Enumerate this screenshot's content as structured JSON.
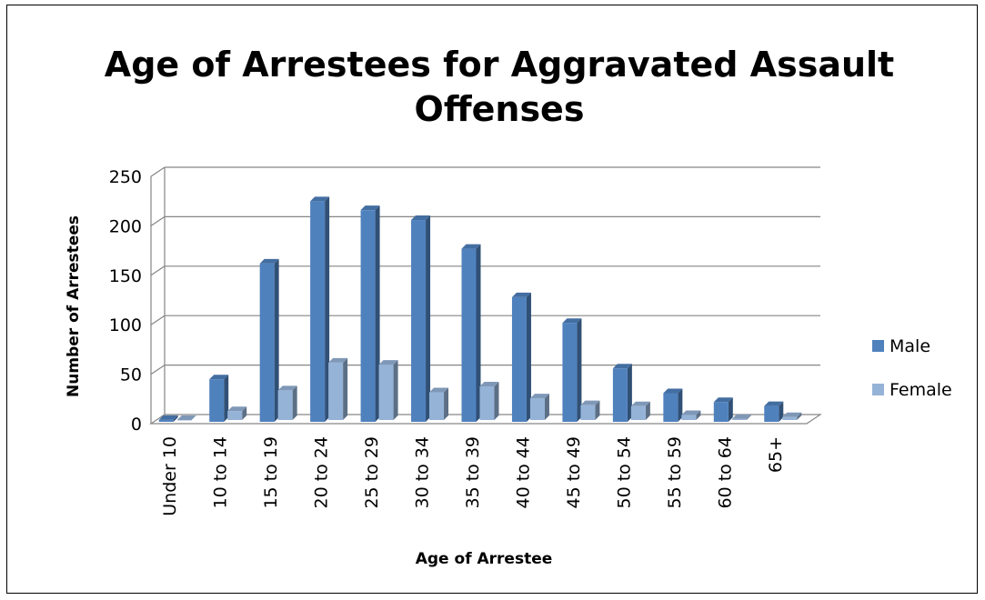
{
  "chart_data": {
    "type": "bar",
    "title_lines": [
      "Age of Arrestees for Aggravated Assault",
      "Offenses"
    ],
    "xlabel": "Age of Arrestee",
    "ylabel": "Number of Arrestees",
    "ylim": [
      0,
      250
    ],
    "yticks": [
      0,
      50,
      100,
      150,
      200,
      250
    ],
    "grid": true,
    "legend_position": "right",
    "categories": [
      "Under 10",
      "10 to 14",
      "15 to 19",
      "20 to 24",
      "25 to 29",
      "30 to 34",
      "35 to 39",
      "40 to 44",
      "45 to 49",
      "50 to 54",
      "55 to 59",
      "60 to 64",
      "65+"
    ],
    "series": [
      {
        "name": "Male",
        "color": "#4F81BD",
        "values": [
          2,
          43,
          160,
          223,
          214,
          204,
          175,
          126,
          100,
          54,
          29,
          20,
          16
        ]
      },
      {
        "name": "Female",
        "color": "#95B3D7",
        "values": [
          0,
          9,
          30,
          58,
          56,
          28,
          34,
          22,
          15,
          14,
          5,
          1,
          3
        ]
      }
    ]
  }
}
